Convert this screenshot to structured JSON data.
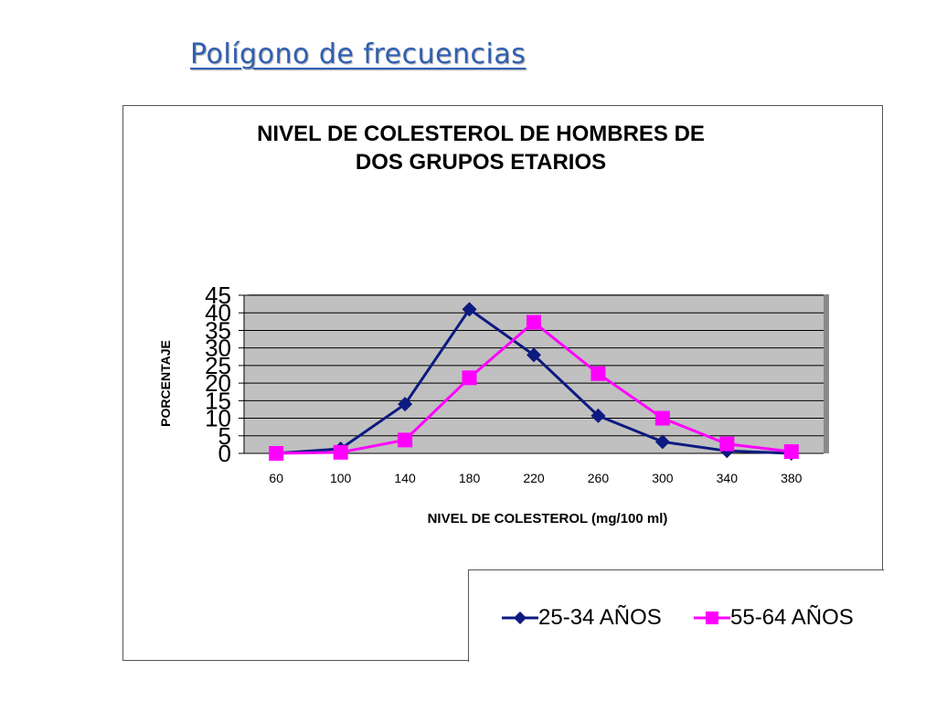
{
  "slide": {
    "title": "Polígono de frecuencias"
  },
  "colors": {
    "series1": "#0d1a80",
    "series2": "#ff00ff",
    "plot_bg": "#c0c0c0",
    "grid": "#000000",
    "title_blue": "#2f5fb3"
  },
  "chart_data": {
    "type": "line",
    "title_line1": "NIVEL DE COLESTEROL DE HOMBRES DE",
    "title_line2": "DOS GRUPOS ETARIOS",
    "xlabel": "NIVEL DE COLESTEROL (mg/100 ml)",
    "ylabel": "PORCENTAJE",
    "categories": [
      "60",
      "100",
      "140",
      "180",
      "220",
      "260",
      "300",
      "340",
      "380"
    ],
    "ylim": [
      0,
      45
    ],
    "yticks": [
      "0",
      "5",
      "10",
      "15",
      "20",
      "25",
      "30",
      "35",
      "40",
      "45"
    ],
    "grid": true,
    "legend_position": "bottom-right",
    "series": [
      {
        "name": "25-34 AÑOS",
        "marker": "diamond",
        "values": [
          0,
          1.3,
          14,
          41,
          28,
          10.7,
          3.3,
          0.7,
          0
        ]
      },
      {
        "name": "55-64 AÑOS",
        "marker": "square",
        "values": [
          0,
          0.3,
          3.8,
          21.5,
          37.3,
          22.7,
          10,
          2.7,
          0.5
        ]
      }
    ]
  }
}
